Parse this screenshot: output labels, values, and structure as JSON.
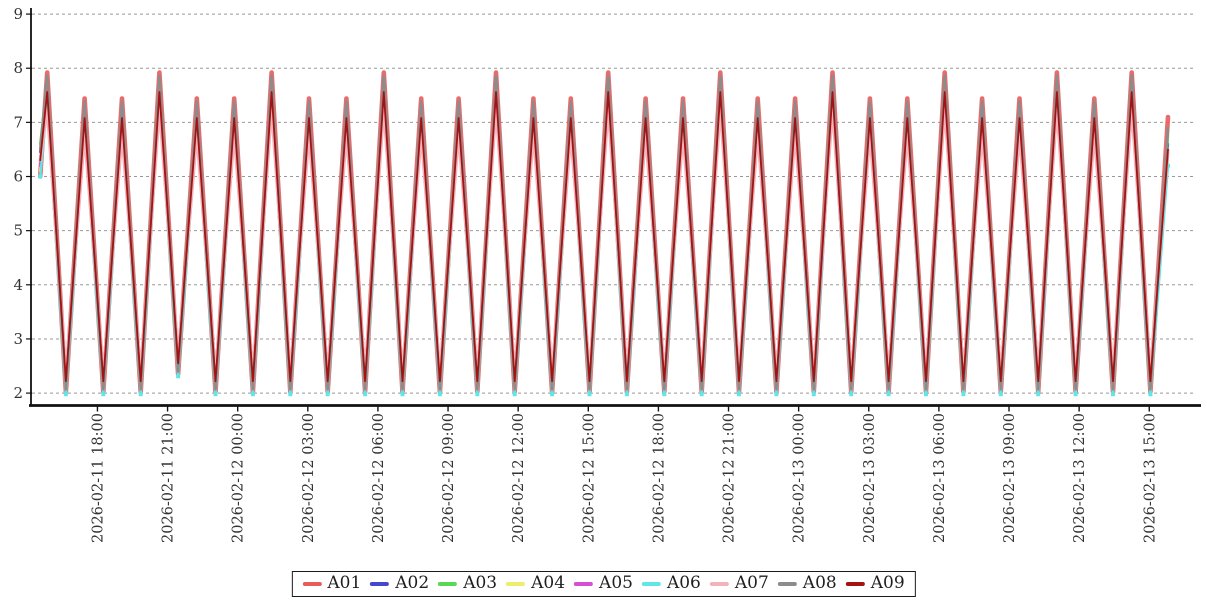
{
  "chart_data": {
    "type": "line",
    "title": "",
    "xlabel": "",
    "ylabel": "",
    "grid": "horizontal-dashed",
    "legend_position": "bottom-center",
    "y_axis": {
      "ticks": [
        2,
        3,
        4,
        5,
        6,
        7,
        8,
        9
      ],
      "range": [
        1.78,
        9.26
      ]
    },
    "x_axis": {
      "unit": "hours-from-2026-02-11 15:10",
      "range_hours": [
        0,
        49.8
      ],
      "tick_hours": [
        2.8,
        5.8,
        8.8,
        11.8,
        14.8,
        17.8,
        20.8,
        23.8,
        26.8,
        29.8,
        32.8,
        35.8,
        38.8,
        41.8,
        44.8,
        47.8
      ],
      "tick_labels": [
        "2026-02-11 18:00",
        "2026-02-11 21:00",
        "2026-02-12 00:00",
        "2026-02-12 03:00",
        "2026-02-12 06:00",
        "2026-02-12 09:00",
        "2026-02-12 12:00",
        "2026-02-12 15:00",
        "2026-02-12 18:00",
        "2026-02-12 21:00",
        "2026-02-13 00:00",
        "2026-02-13 03:00",
        "2026-02-13 06:00",
        "2026-02-13 09:00",
        "2026-02-13 12:00",
        "2026-02-13 15:00"
      ],
      "label_rotation": "vertical"
    },
    "x_hours": [
      0.35,
      0.65,
      1.45,
      2.25,
      3.05,
      3.85,
      4.65,
      5.45,
      6.25,
      7.05,
      7.85,
      8.65,
      9.45,
      10.25,
      11.05,
      11.85,
      12.65,
      13.45,
      14.25,
      15.05,
      15.85,
      16.65,
      17.45,
      18.25,
      19.05,
      19.85,
      20.65,
      21.45,
      22.25,
      23.05,
      23.85,
      24.65,
      25.45,
      26.25,
      27.05,
      27.85,
      28.65,
      29.45,
      30.25,
      31.05,
      31.85,
      32.65,
      33.45,
      34.25,
      35.05,
      35.85,
      36.65,
      37.45,
      38.25,
      39.05,
      39.85,
      40.65,
      41.45,
      42.25,
      43.05,
      43.85,
      44.65,
      45.45,
      46.25,
      47.05,
      47.85,
      48.6
    ],
    "series": [
      {
        "name": "A01",
        "color": "#e85b5b",
        "line_width": 4.6,
        "opacity": 0.9,
        "marker": "none",
        "values": [
          6.0,
          7.92,
          2.02,
          7.44,
          2.02,
          7.44,
          2.02,
          7.92,
          2.35,
          7.44,
          2.02,
          7.44,
          2.02,
          7.92,
          2.02,
          7.44,
          2.02,
          7.44,
          2.02,
          7.92,
          2.02,
          7.44,
          2.02,
          7.44,
          2.02,
          7.92,
          2.02,
          7.44,
          2.02,
          7.44,
          2.02,
          7.92,
          2.02,
          7.44,
          2.02,
          7.44,
          2.02,
          7.92,
          2.02,
          7.44,
          2.02,
          7.44,
          2.02,
          7.92,
          2.02,
          7.44,
          2.02,
          7.44,
          2.02,
          7.92,
          2.02,
          7.44,
          2.02,
          7.44,
          2.02,
          7.92,
          2.02,
          7.44,
          2.02,
          7.92,
          2.02,
          7.1
        ]
      },
      {
        "name": "A02",
        "color": "#4747cd",
        "line_width": 2.4,
        "opacity": 1,
        "marker": "none",
        "values": [
          6.45,
          7.65,
          2.17,
          7.17,
          2.17,
          7.17,
          2.17,
          7.65,
          2.5,
          7.17,
          2.17,
          7.17,
          2.17,
          7.65,
          2.17,
          7.17,
          2.17,
          7.17,
          2.17,
          7.65,
          2.17,
          7.17,
          2.17,
          7.17,
          2.17,
          7.65,
          2.17,
          7.17,
          2.17,
          7.17,
          2.17,
          7.65,
          2.17,
          7.17,
          2.17,
          7.17,
          2.17,
          7.65,
          2.17,
          7.17,
          2.17,
          7.17,
          2.17,
          7.65,
          2.17,
          7.17,
          2.17,
          7.17,
          2.17,
          7.65,
          2.17,
          7.17,
          2.17,
          7.17,
          2.17,
          7.65,
          2.17,
          7.17,
          2.17,
          7.65,
          2.17,
          6.6
        ]
      },
      {
        "name": "A03",
        "color": "#57d957",
        "line_width": 2.4,
        "opacity": 1,
        "marker": "none",
        "values": [
          6.6,
          7.76,
          2.12,
          7.28,
          2.12,
          7.28,
          2.12,
          7.76,
          2.45,
          7.28,
          2.12,
          7.28,
          2.12,
          7.76,
          2.12,
          7.28,
          2.12,
          7.28,
          2.12,
          7.76,
          2.12,
          7.28,
          2.12,
          7.28,
          2.12,
          7.76,
          2.12,
          7.28,
          2.12,
          7.28,
          2.12,
          7.76,
          2.12,
          7.28,
          2.12,
          7.28,
          2.12,
          7.76,
          2.12,
          7.28,
          2.12,
          7.28,
          2.12,
          7.76,
          2.12,
          7.28,
          2.12,
          7.28,
          2.12,
          7.76,
          2.12,
          7.28,
          2.12,
          7.28,
          2.12,
          7.76,
          2.12,
          7.28,
          2.12,
          7.76,
          2.12,
          6.75
        ]
      },
      {
        "name": "A04",
        "color": "#eded6e",
        "line_width": 2.4,
        "opacity": 1,
        "marker": "none",
        "values": [
          6.1,
          7.42,
          2.3,
          6.94,
          2.3,
          6.94,
          2.3,
          7.42,
          2.63,
          6.94,
          2.3,
          6.94,
          2.3,
          7.42,
          2.3,
          6.94,
          2.3,
          6.94,
          2.3,
          7.42,
          2.3,
          6.94,
          2.3,
          6.94,
          2.3,
          7.42,
          2.3,
          6.94,
          2.3,
          6.94,
          2.3,
          7.42,
          2.3,
          6.94,
          2.3,
          6.94,
          2.3,
          7.42,
          2.3,
          6.94,
          2.3,
          6.94,
          2.3,
          7.42,
          2.3,
          6.94,
          2.3,
          6.94,
          2.3,
          7.42,
          2.3,
          6.94,
          2.3,
          6.94,
          2.3,
          7.42,
          2.3,
          6.94,
          2.3,
          7.42,
          2.3,
          6.3
        ]
      },
      {
        "name": "A05",
        "color": "#d44fd4",
        "line_width": 2.4,
        "opacity": 1,
        "marker": "none",
        "values": [
          6.2,
          7.5,
          2.26,
          7.02,
          2.26,
          7.02,
          2.26,
          7.5,
          2.59,
          7.02,
          2.26,
          7.02,
          2.26,
          7.5,
          2.26,
          7.02,
          2.26,
          7.02,
          2.26,
          7.5,
          2.26,
          7.02,
          2.26,
          7.02,
          2.26,
          7.5,
          2.26,
          7.02,
          2.26,
          7.02,
          2.26,
          7.5,
          2.26,
          7.02,
          2.26,
          7.02,
          2.26,
          7.5,
          2.26,
          7.02,
          2.26,
          7.02,
          2.26,
          7.5,
          2.26,
          7.02,
          2.26,
          7.02,
          2.26,
          7.5,
          2.26,
          7.02,
          2.26,
          7.02,
          2.26,
          7.5,
          2.26,
          7.02,
          2.26,
          7.5,
          2.26,
          6.4
        ]
      },
      {
        "name": "A06",
        "color": "#5fe6e6",
        "line_width": 2.4,
        "opacity": 1,
        "marker": "square",
        "values": [
          6.0,
          7.34,
          1.98,
          6.86,
          1.98,
          6.86,
          1.98,
          7.34,
          2.31,
          6.86,
          1.98,
          6.86,
          1.98,
          7.34,
          1.98,
          6.86,
          1.98,
          6.86,
          1.98,
          7.34,
          1.98,
          6.86,
          1.98,
          6.86,
          1.98,
          7.34,
          1.98,
          6.86,
          1.98,
          6.86,
          1.98,
          7.34,
          1.98,
          6.86,
          1.98,
          6.86,
          1.98,
          7.34,
          1.98,
          6.86,
          1.98,
          6.86,
          1.98,
          7.34,
          1.98,
          6.86,
          1.98,
          6.86,
          1.98,
          7.34,
          1.98,
          6.86,
          1.98,
          6.86,
          1.98,
          7.34,
          1.98,
          6.86,
          1.98,
          7.34,
          1.98,
          6.2
        ]
      },
      {
        "name": "A07",
        "color": "#f2b3ba",
        "line_width": 3.0,
        "opacity": 1,
        "marker": "none",
        "values": [
          6.3,
          7.24,
          2.38,
          6.76,
          2.38,
          6.76,
          2.38,
          7.24,
          2.71,
          6.76,
          2.38,
          6.76,
          2.38,
          7.24,
          2.38,
          6.76,
          2.38,
          6.76,
          2.38,
          7.24,
          2.38,
          6.76,
          2.38,
          6.76,
          2.38,
          7.24,
          2.38,
          6.76,
          2.38,
          6.76,
          2.38,
          7.24,
          2.38,
          6.76,
          2.38,
          6.76,
          2.38,
          7.24,
          2.38,
          6.76,
          2.38,
          6.76,
          2.38,
          7.24,
          2.38,
          6.76,
          2.38,
          6.76,
          2.38,
          7.24,
          2.38,
          6.76,
          2.38,
          6.76,
          2.38,
          7.24,
          2.38,
          6.76,
          2.38,
          7.24,
          2.38,
          6.5
        ]
      },
      {
        "name": "A08",
        "color": "#8c8c8c",
        "line_width": 2.6,
        "opacity": 1,
        "marker": "none",
        "values": [
          6.5,
          7.86,
          2.07,
          7.38,
          2.07,
          7.38,
          2.07,
          7.86,
          2.4,
          7.38,
          2.07,
          7.38,
          2.07,
          7.86,
          2.07,
          7.38,
          2.07,
          7.38,
          2.07,
          7.86,
          2.07,
          7.38,
          2.07,
          7.38,
          2.07,
          7.86,
          2.07,
          7.38,
          2.07,
          7.38,
          2.07,
          7.86,
          2.07,
          7.38,
          2.07,
          7.38,
          2.07,
          7.86,
          2.07,
          7.38,
          2.07,
          7.38,
          2.07,
          7.86,
          2.07,
          7.38,
          2.07,
          7.38,
          2.07,
          7.86,
          2.07,
          7.38,
          2.07,
          7.38,
          2.07,
          7.86,
          2.07,
          7.38,
          2.07,
          7.86,
          2.07,
          6.9
        ]
      },
      {
        "name": "A09",
        "color": "#a31313",
        "line_width": 1.8,
        "opacity": 1,
        "marker": "none",
        "values": [
          6.3,
          7.56,
          2.22,
          7.08,
          2.22,
          7.08,
          2.22,
          7.56,
          2.55,
          7.08,
          2.22,
          7.08,
          2.22,
          7.56,
          2.22,
          7.08,
          2.22,
          7.08,
          2.22,
          7.56,
          2.22,
          7.08,
          2.22,
          7.08,
          2.22,
          7.56,
          2.22,
          7.08,
          2.22,
          7.08,
          2.22,
          7.56,
          2.22,
          7.08,
          2.22,
          7.08,
          2.22,
          7.56,
          2.22,
          7.08,
          2.22,
          7.08,
          2.22,
          7.56,
          2.22,
          7.08,
          2.22,
          7.08,
          2.22,
          7.56,
          2.22,
          7.08,
          2.22,
          7.08,
          2.22,
          7.56,
          2.22,
          7.08,
          2.22,
          7.56,
          2.22,
          6.5
        ]
      }
    ]
  },
  "colors": {
    "background": "#ffffff",
    "grid": "#999999",
    "axis": "#111111",
    "tick_text": "#333333",
    "legend_border": "#1a1a1a",
    "legend_text": "#1f1f1f"
  }
}
